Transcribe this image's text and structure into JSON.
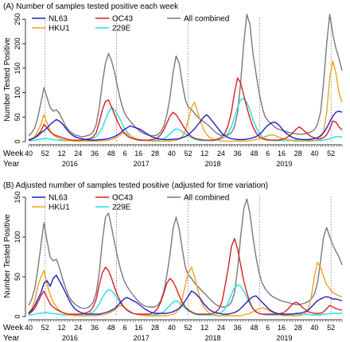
{
  "chart_data": [
    {
      "type": "line",
      "title": "(A) Number of samples tested positive each week",
      "ylabel": "Number Tested Positive",
      "xlabel": "",
      "ylim": [
        0,
        260
      ],
      "yticks": [
        0,
        50,
        100,
        150,
        200,
        250
      ],
      "week_label": "Week",
      "year_label": "Year",
      "grid": false,
      "legend_position": "top-left",
      "series": [
        {
          "name": "NL63",
          "color": "#1f1fc8",
          "values": [
            3,
            5,
            8,
            12,
            18,
            22,
            28,
            35,
            40,
            45,
            42,
            36,
            28,
            20,
            14,
            10,
            8,
            6,
            5,
            4,
            3,
            3,
            3,
            4,
            4,
            5,
            6,
            8,
            10,
            14,
            18,
            24,
            28,
            32,
            30,
            28,
            26,
            22,
            18,
            14,
            10,
            8,
            6,
            5,
            4,
            4,
            4,
            5,
            5,
            6,
            8,
            10,
            14,
            20,
            26,
            34,
            42,
            50,
            55,
            48,
            40,
            32,
            24,
            16,
            12,
            8,
            6,
            5,
            4,
            4,
            4,
            5,
            6,
            8,
            10,
            14,
            20,
            28,
            34,
            38,
            40,
            36,
            30,
            22,
            16,
            12,
            8,
            6,
            5,
            4,
            4,
            4,
            5,
            6,
            8,
            12,
            18,
            28,
            40,
            52,
            60,
            62,
            60
          ]
        },
        {
          "name": "HKU1",
          "color": "#f2a21a",
          "values": [
            4,
            6,
            10,
            22,
            35,
            55,
            38,
            22,
            14,
            9,
            6,
            4,
            3,
            2,
            2,
            1,
            1,
            1,
            1,
            1,
            1,
            1,
            1,
            1,
            2,
            2,
            3,
            4,
            6,
            10,
            14,
            18,
            16,
            12,
            9,
            6,
            4,
            3,
            2,
            2,
            1,
            1,
            1,
            1,
            1,
            1,
            1,
            2,
            3,
            5,
            10,
            22,
            45,
            70,
            80,
            60,
            40,
            24,
            14,
            8,
            5,
            3,
            2,
            1,
            1,
            1,
            1,
            1,
            1,
            1,
            1,
            1,
            2,
            3,
            4,
            6,
            8,
            10,
            12,
            14,
            13,
            10,
            8,
            6,
            4,
            3,
            2,
            1,
            1,
            1,
            1,
            1,
            1,
            2,
            4,
            8,
            20,
            60,
            130,
            165,
            140,
            100,
            80
          ]
        },
        {
          "name": "OC43",
          "color": "#d81f1f",
          "values": [
            3,
            5,
            8,
            14,
            22,
            35,
            28,
            20,
            15,
            12,
            10,
            8,
            6,
            4,
            3,
            3,
            3,
            3,
            4,
            5,
            6,
            10,
            18,
            40,
            65,
            82,
            85,
            70,
            55,
            40,
            28,
            18,
            12,
            8,
            6,
            4,
            3,
            3,
            3,
            3,
            4,
            5,
            8,
            14,
            24,
            38,
            52,
            60,
            55,
            45,
            35,
            25,
            16,
            10,
            7,
            5,
            4,
            3,
            3,
            3,
            3,
            4,
            6,
            10,
            18,
            35,
            60,
            100,
            130,
            120,
            95,
            70,
            48,
            30,
            18,
            10,
            6,
            4,
            3,
            3,
            3,
            3,
            4,
            5,
            8,
            12,
            18,
            25,
            30,
            26,
            20,
            15,
            10,
            8,
            6,
            5,
            8,
            14,
            26,
            42,
            40,
            30,
            24
          ]
        },
        {
          "name": "229E",
          "color": "#1ee0e8",
          "values": [
            2,
            2,
            3,
            4,
            5,
            6,
            6,
            5,
            4,
            3,
            3,
            2,
            2,
            2,
            2,
            2,
            2,
            2,
            2,
            3,
            4,
            6,
            10,
            18,
            28,
            45,
            60,
            70,
            65,
            55,
            42,
            30,
            20,
            12,
            8,
            5,
            3,
            2,
            2,
            2,
            2,
            2,
            3,
            4,
            6,
            10,
            16,
            22,
            26,
            24,
            20,
            16,
            12,
            8,
            5,
            3,
            2,
            2,
            2,
            2,
            2,
            3,
            4,
            6,
            10,
            18,
            30,
            50,
            70,
            85,
            88,
            80,
            65,
            45,
            30,
            18,
            10,
            6,
            4,
            3,
            2,
            2,
            2,
            2,
            2,
            2,
            3,
            3,
            4,
            4,
            4,
            3,
            3,
            2,
            2,
            2,
            3,
            4,
            6,
            8,
            10,
            10,
            9
          ]
        },
        {
          "name": "All combined",
          "color": "#7a7a7a",
          "values": [
            12,
            18,
            28,
            50,
            80,
            110,
            90,
            70,
            62,
            65,
            58,
            45,
            32,
            24,
            18,
            14,
            12,
            10,
            10,
            12,
            14,
            20,
            35,
            70,
            120,
            160,
            180,
            165,
            140,
            110,
            82,
            62,
            50,
            42,
            35,
            28,
            22,
            18,
            15,
            13,
            12,
            12,
            14,
            20,
            32,
            55,
            90,
            140,
            175,
            160,
            120,
            85,
            70,
            65,
            58,
            50,
            45,
            40,
            36,
            30,
            24,
            18,
            14,
            12,
            12,
            14,
            18,
            30,
            60,
            120,
            200,
            260,
            240,
            180,
            140,
            100,
            70,
            50,
            42,
            36,
            30,
            26,
            24,
            22,
            20,
            18,
            17,
            16,
            15,
            15,
            16,
            18,
            20,
            24,
            35,
            60,
            120,
            200,
            260,
            220,
            190,
            170,
            145
          ]
        }
      ]
    },
    {
      "type": "line",
      "title": "(B) Adjusted number of samples tested positive (adjusted for time variation)",
      "ylabel": "Number Tested Positive",
      "xlabel": "",
      "ylim": [
        0,
        155
      ],
      "yticks": [
        0,
        50,
        100,
        150
      ],
      "week_label": "Week",
      "year_label": "Year",
      "grid": false,
      "legend_position": "top-left",
      "series": [
        {
          "name": "NL63",
          "color": "#1f1fc8",
          "values": [
            4,
            8,
            14,
            22,
            30,
            42,
            45,
            38,
            48,
            52,
            45,
            38,
            30,
            22,
            15,
            10,
            7,
            5,
            4,
            3,
            3,
            3,
            3,
            3,
            4,
            5,
            6,
            8,
            10,
            14,
            18,
            22,
            24,
            22,
            20,
            18,
            15,
            12,
            9,
            7,
            5,
            4,
            4,
            4,
            4,
            4,
            5,
            6,
            8,
            10,
            14,
            20,
            26,
            32,
            30,
            26,
            22,
            16,
            12,
            8,
            6,
            5,
            4,
            3,
            3,
            3,
            4,
            5,
            7,
            10,
            14,
            18,
            22,
            25,
            26,
            22,
            18,
            14,
            10,
            7,
            5,
            4,
            3,
            3,
            3,
            3,
            3,
            4,
            4,
            5,
            6,
            8,
            12,
            16,
            20,
            22,
            24,
            25,
            24,
            22,
            22,
            21,
            20
          ]
        },
        {
          "name": "HKU1",
          "color": "#f2a21a",
          "values": [
            5,
            10,
            20,
            38,
            50,
            58,
            40,
            28,
            18,
            12,
            8,
            5,
            3,
            2,
            2,
            1,
            1,
            1,
            1,
            1,
            1,
            1,
            1,
            2,
            2,
            3,
            4,
            6,
            8,
            12,
            14,
            12,
            9,
            6,
            4,
            3,
            2,
            2,
            1,
            1,
            1,
            1,
            1,
            1,
            1,
            1,
            2,
            3,
            5,
            10,
            22,
            40,
            55,
            62,
            50,
            34,
            20,
            12,
            7,
            4,
            2,
            1,
            1,
            1,
            1,
            1,
            1,
            1,
            1,
            1,
            2,
            3,
            4,
            6,
            8,
            10,
            11,
            10,
            8,
            6,
            4,
            3,
            2,
            1,
            1,
            1,
            1,
            1,
            1,
            2,
            4,
            10,
            25,
            50,
            68,
            62,
            50,
            40,
            35,
            30,
            28,
            26,
            25
          ]
        },
        {
          "name": "OC43",
          "color": "#d81f1f",
          "values": [
            3,
            6,
            10,
            18,
            26,
            32,
            24,
            16,
            12,
            9,
            7,
            5,
            4,
            3,
            3,
            3,
            3,
            3,
            4,
            5,
            7,
            12,
            22,
            40,
            55,
            62,
            58,
            48,
            36,
            26,
            18,
            12,
            8,
            6,
            4,
            3,
            3,
            3,
            3,
            3,
            4,
            6,
            10,
            18,
            30,
            42,
            48,
            44,
            36,
            26,
            18,
            12,
            8,
            6,
            4,
            3,
            3,
            3,
            3,
            3,
            4,
            6,
            10,
            20,
            40,
            62,
            88,
            98,
            85,
            65,
            45,
            30,
            18,
            10,
            6,
            4,
            3,
            3,
            3,
            3,
            3,
            3,
            4,
            5,
            8,
            12,
            16,
            18,
            16,
            12,
            9,
            6,
            5,
            4,
            4,
            4,
            6,
            10,
            14,
            12,
            10,
            9,
            8
          ]
        },
        {
          "name": "229E",
          "color": "#1ee0e8",
          "values": [
            2,
            2,
            3,
            4,
            4,
            5,
            5,
            4,
            4,
            3,
            3,
            2,
            2,
            2,
            2,
            2,
            2,
            2,
            2,
            3,
            4,
            6,
            10,
            16,
            24,
            30,
            34,
            32,
            28,
            22,
            16,
            12,
            8,
            5,
            4,
            3,
            2,
            2,
            2,
            2,
            2,
            2,
            3,
            4,
            6,
            10,
            14,
            18,
            20,
            18,
            14,
            10,
            7,
            5,
            3,
            2,
            2,
            2,
            2,
            2,
            2,
            3,
            4,
            6,
            10,
            18,
            28,
            36,
            40,
            38,
            32,
            24,
            16,
            10,
            6,
            4,
            3,
            2,
            2,
            2,
            2,
            2,
            2,
            2,
            2,
            3,
            3,
            3,
            3,
            3,
            3,
            3,
            2,
            2,
            2,
            2,
            3,
            3,
            4,
            4,
            4,
            4,
            4
          ]
        },
        {
          "name": "All combined",
          "color": "#7a7a7a",
          "values": [
            14,
            22,
            35,
            60,
            90,
            118,
            95,
            75,
            70,
            72,
            62,
            48,
            36,
            26,
            20,
            16,
            13,
            11,
            10,
            11,
            13,
            18,
            30,
            55,
            95,
            125,
            130,
            112,
            92,
            74,
            58,
            46,
            38,
            32,
            27,
            22,
            18,
            15,
            13,
            12,
            12,
            12,
            14,
            20,
            32,
            52,
            78,
            110,
            125,
            110,
            85,
            62,
            52,
            48,
            42,
            38,
            34,
            30,
            26,
            22,
            18,
            15,
            13,
            12,
            12,
            14,
            18,
            30,
            60,
            100,
            135,
            148,
            130,
            100,
            75,
            55,
            42,
            35,
            30,
            26,
            24,
            22,
            20,
            19,
            18,
            17,
            16,
            15,
            15,
            16,
            17,
            19,
            22,
            28,
            42,
            70,
            100,
            112,
            100,
            90,
            82,
            75,
            65
          ]
        }
      ]
    }
  ],
  "x_axis": {
    "week_ticks": [
      "40",
      "52",
      "12",
      "24",
      "36",
      "48",
      "6",
      "16",
      "28",
      "40",
      "52",
      "12",
      "24",
      "36",
      "48",
      "6",
      "16",
      "28",
      "40",
      "52"
    ],
    "week_tick_index": [
      0,
      12,
      24,
      36,
      48,
      60,
      70,
      80,
      92,
      104,
      116,
      128,
      140,
      152,
      164,
      174,
      184,
      196,
      208,
      220
    ],
    "year_labels": [
      "2016",
      "2017",
      "2018",
      "2019"
    ],
    "year_label_index": [
      30,
      82,
      134,
      186
    ],
    "dashed_line_index": [
      12,
      64,
      116,
      168,
      220
    ],
    "n_weeks": 229
  }
}
